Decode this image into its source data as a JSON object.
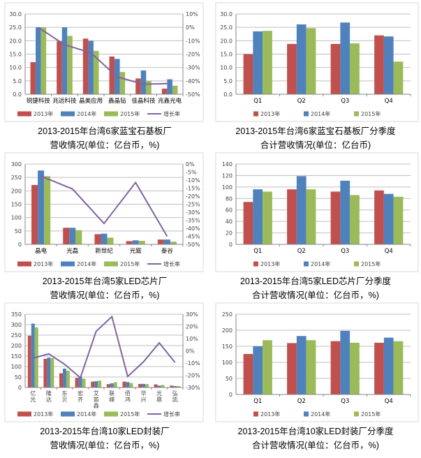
{
  "colors": {
    "2013": "#C0504D",
    "2014": "#4F81BD",
    "2015": "#9BBB59",
    "growth": "#8064A2",
    "grid": "#BFBFBF"
  },
  "chart_data": [
    {
      "type": "bar",
      "title_lines": [
        "2013-2015年台湾6家蓝宝石基板厂",
        "营收情况(单位：亿台币，%)"
      ],
      "categories": [
        "锐捷科技",
        "兆远科技",
        "晶美应用",
        "鑫晶钻",
        "佳晶科技",
        "兆鑫光电"
      ],
      "series": [
        {
          "name": "2013年",
          "values": [
            12,
            19.8,
            20.8,
            14.1,
            5.9,
            2.1
          ]
        },
        {
          "name": "2014年",
          "values": [
            25,
            25,
            20,
            13.2,
            8.9,
            5.6
          ]
        },
        {
          "name": "2015年",
          "values": [
            25,
            21.8,
            16.2,
            8.3,
            5,
            3.2
          ]
        }
      ],
      "line": {
        "name": "增长率",
        "values": [
          0,
          -13,
          -19,
          -37,
          -42.5,
          -42
        ]
      },
      "ylim": [
        0,
        30
      ],
      "ystep": 5,
      "ytick_format": "0.0",
      "y2lim": [
        -50,
        10
      ],
      "y2step": 10,
      "grid": true,
      "legend": "bottom"
    },
    {
      "type": "bar",
      "title_lines": [
        "2013-2015年台湾6家蓝宝石基板厂分季度",
        "合计营收情况(单位：亿台币)"
      ],
      "categories": [
        "Q1",
        "Q2",
        "Q3",
        "Q4"
      ],
      "series": [
        {
          "name": "2013年",
          "values": [
            15,
            18.8,
            18.8,
            22
          ]
        },
        {
          "name": "2014年",
          "values": [
            23.5,
            26.1,
            26.8,
            21.6
          ]
        },
        {
          "name": "2015年",
          "values": [
            23.7,
            24.7,
            19,
            12.2
          ]
        }
      ],
      "ylim": [
        0,
        30
      ],
      "ystep": 5,
      "ytick_format": "0.0",
      "grid": true,
      "legend": "bottom"
    },
    {
      "type": "bar",
      "title_lines": [
        "2013-2015年台湾5家LED芯片厂",
        "营收情况(单位：亿台币，%)"
      ],
      "categories": [
        "晶电",
        "光磊",
        "新世纪",
        "光鋐",
        "泰谷"
      ],
      "series": [
        {
          "name": "2013年",
          "values": [
            222,
            62,
            38,
            12,
            18
          ]
        },
        {
          "name": "2014年",
          "values": [
            276,
            62,
            40,
            15,
            18
          ]
        },
        {
          "name": "2015年",
          "values": [
            255,
            53,
            25,
            13,
            10
          ]
        }
      ],
      "line": {
        "name": "增长率",
        "values": [
          -7.5,
          -15.5,
          -37,
          -11.5,
          -45
        ]
      },
      "ylim": [
        0,
        300
      ],
      "ystep": 50,
      "ytick_format": "0",
      "y2lim": [
        -50,
        0
      ],
      "y2step": 5,
      "grid": true,
      "legend": "bottom"
    },
    {
      "type": "bar",
      "title_lines": [
        "2013-2015年台湾5家LED芯片厂分季度",
        "合计营收情况(单位：亿台币，%)"
      ],
      "categories": [
        "Q1",
        "Q2",
        "Q3",
        "Q4"
      ],
      "series": [
        {
          "name": "2013年",
          "values": [
            74,
            96,
            92,
            94
          ]
        },
        {
          "name": "2014年",
          "values": [
            96,
            119,
            111,
            88
          ]
        },
        {
          "name": "2015年",
          "values": [
            92,
            96,
            86,
            83
          ]
        }
      ],
      "ylim": [
        0,
        140
      ],
      "ystep": 20,
      "ytick_format": "0",
      "grid": true,
      "legend": "bottom"
    },
    {
      "type": "bar",
      "title_lines": [
        "2013-2015年台湾10家LED封装厂",
        "营收情况(单位：亿台币，%)"
      ],
      "categories": [
        "亿光",
        "隆达",
        "东贝",
        "宏齐",
        "艾笛森",
        "联嵘",
        "佰鸿",
        "华兴",
        "光鼎",
        "弘凯"
      ],
      "series": [
        {
          "name": "2013年",
          "values": [
            247,
            137,
            68,
            46,
            28,
            16,
            28,
            17,
            15,
            9
          ]
        },
        {
          "name": "2014年",
          "values": [
            305,
            143,
            90,
            52,
            30,
            20,
            26,
            17,
            9,
            7
          ]
        },
        {
          "name": "2015年",
          "values": [
            287,
            140,
            80,
            42,
            33,
            25,
            21,
            16,
            12,
            7
          ]
        }
      ],
      "line": {
        "name": "增长率",
        "values": [
          -6,
          -2.5,
          -11,
          -22,
          16,
          28,
          -21,
          -9,
          6.5,
          -9.5
        ]
      },
      "ylim": [
        0,
        350
      ],
      "ystep": 50,
      "ytick_format": "0",
      "y2lim": [
        -30,
        30
      ],
      "y2step": 10,
      "grid": true,
      "legend": "bottom"
    },
    {
      "type": "bar",
      "title_lines": [
        "2013-2015年台湾10家LED封装厂分季度",
        "合计营收情况(单位：亿台币，%)"
      ],
      "categories": [
        "Q1",
        "Q2",
        "Q3",
        "Q4"
      ],
      "series": [
        {
          "name": "2013年",
          "values": [
            126,
            160,
            166,
            161
          ]
        },
        {
          "name": "2014年",
          "values": [
            150,
            182,
            198,
            177
          ]
        },
        {
          "name": "2015年",
          "values": [
            169,
            169,
            161,
            166
          ]
        }
      ],
      "ylim": [
        0,
        250
      ],
      "ystep": 50,
      "ytick_format": "0",
      "grid": true,
      "legend": "bottom"
    }
  ]
}
